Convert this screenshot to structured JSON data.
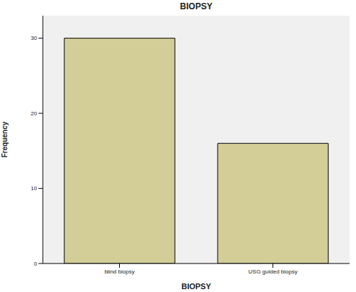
{
  "chart_data": {
    "type": "bar",
    "title": "BIOPSY",
    "x_label": "BIOPSY",
    "y_label": "Frequency",
    "categories": [
      "blind biopsy",
      "USG guided biopsy"
    ],
    "values": [
      30,
      16
    ],
    "color": "#d3ce97",
    "ylim": [
      0,
      33
    ],
    "yticks": [
      0,
      10,
      20,
      30
    ],
    "grid": false
  }
}
